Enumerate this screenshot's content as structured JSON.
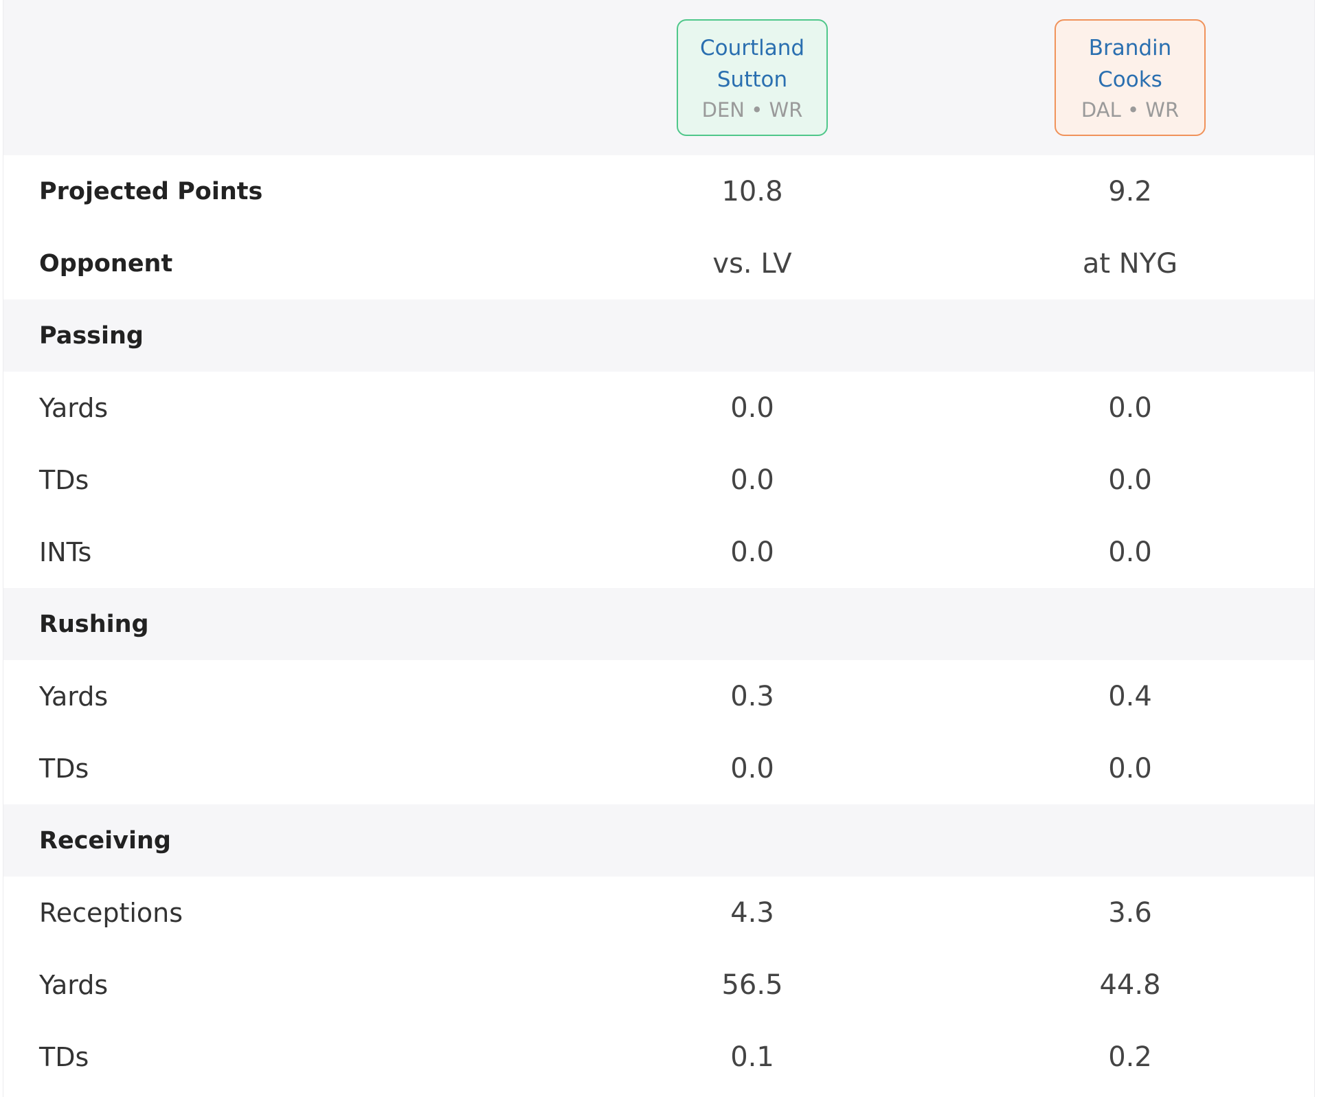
{
  "players": [
    {
      "name_line1": "Courtland",
      "name_line2": "Sutton",
      "meta": "DEN • WR",
      "accent": "#4fc78a"
    },
    {
      "name_line1": "Brandin",
      "name_line2": "Cooks",
      "meta": "DAL • WR",
      "accent": "#f0925a"
    }
  ],
  "summary": {
    "projected_points": {
      "label": "Projected Points",
      "a": "10.8",
      "b": "9.2"
    },
    "opponent": {
      "label": "Opponent",
      "a": "vs. LV",
      "b": "at NYG"
    }
  },
  "passing": {
    "title": "Passing",
    "yards": {
      "label": "Yards",
      "a": "0.0",
      "b": "0.0"
    },
    "tds": {
      "label": "TDs",
      "a": "0.0",
      "b": "0.0"
    },
    "ints": {
      "label": "INTs",
      "a": "0.0",
      "b": "0.0"
    }
  },
  "rushing": {
    "title": "Rushing",
    "yards": {
      "label": "Yards",
      "a": "0.3",
      "b": "0.4"
    },
    "tds": {
      "label": "TDs",
      "a": "0.0",
      "b": "0.0"
    }
  },
  "receiving": {
    "title": "Receiving",
    "receptions": {
      "label": "Receptions",
      "a": "4.3",
      "b": "3.6"
    },
    "yards": {
      "label": "Yards",
      "a": "56.5",
      "b": "44.8"
    },
    "tds": {
      "label": "TDs",
      "a": "0.1",
      "b": "0.2"
    }
  }
}
